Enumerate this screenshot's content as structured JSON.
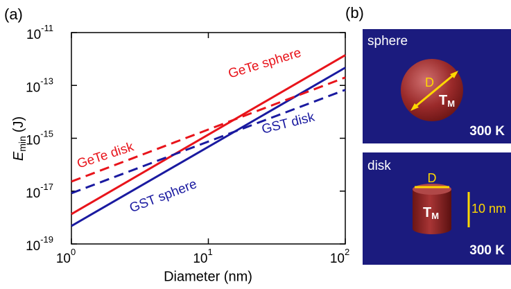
{
  "chart_data": {
    "type": "line",
    "panel_label": "(a)",
    "x_label": "Diameter (nm)",
    "y_label": {
      "symbol": "E",
      "subscript": "min",
      "unit": "(J)"
    },
    "x": [
      1,
      100
    ],
    "xlim": [
      1,
      100
    ],
    "log_x": true,
    "xticks": [
      {
        "value": 1,
        "label": "10",
        "sup": "0"
      },
      {
        "value": 10,
        "label": "10",
        "sup": "1"
      },
      {
        "value": 100,
        "label": "10",
        "sup": "2"
      }
    ],
    "ylim": [
      1e-19,
      1e-11
    ],
    "log_y": true,
    "yticks": [
      {
        "value": 1e-19,
        "label": "10",
        "sup": "-19"
      },
      {
        "value": 1e-17,
        "label": "10",
        "sup": "-17"
      },
      {
        "value": 1e-15,
        "label": "10",
        "sup": "-15"
      },
      {
        "value": 1e-13,
        "label": "10",
        "sup": "-13"
      },
      {
        "value": 1e-11,
        "label": "10",
        "sup": "-11"
      }
    ],
    "series": [
      {
        "name": "GeTe sphere",
        "color": "#e8141b",
        "dashed": false,
        "values": [
          1.35e-18,
          1.4e-12
        ]
      },
      {
        "name": "GST sphere",
        "color": "#1a1aa0",
        "dashed": false,
        "values": [
          4.8e-19,
          4.7e-13
        ]
      },
      {
        "name": "GeTe disk",
        "color": "#e8141b",
        "dashed": true,
        "values": [
          2.3e-17,
          2e-13
        ]
      },
      {
        "name": "GST disk",
        "color": "#1a1aa0",
        "dashed": true,
        "values": [
          8.3e-18,
          6.8e-14
        ]
      }
    ]
  },
  "panel_b": {
    "label": "(b)",
    "sphere": {
      "title": "sphere",
      "dimension": "D",
      "temp_symbol": "T",
      "temp_sub": "M",
      "ambient": "300 K"
    },
    "disk": {
      "title": "disk",
      "dimension": "D",
      "temp_symbol": "T",
      "temp_sub": "M",
      "height": "10 nm",
      "ambient": "300 K"
    }
  }
}
